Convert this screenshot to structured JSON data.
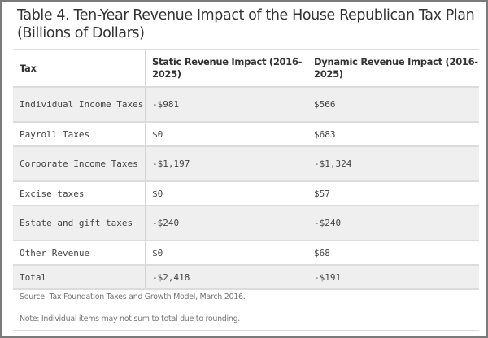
{
  "title": "Table 4. Ten-Year Revenue Impact of the House Republican Tax Plan (Billions of Dollars)",
  "table": {
    "headers": [
      "Tax",
      "Static Revenue Impact (2016-2025)",
      "Dynamic Revenue Impact (2016-2025)"
    ],
    "rows": [
      [
        "Individual Income Taxes",
        "-$981",
        "$566"
      ],
      [
        "Payroll Taxes",
        "$0",
        "$683"
      ],
      [
        "Corporate Income Taxes",
        "-$1,197",
        "-$1,324"
      ],
      [
        "Excise taxes",
        "$0",
        "$57"
      ],
      [
        "Estate and gift taxes",
        "-$240",
        "-$240"
      ],
      [
        "Other Revenue",
        "$0",
        "$68"
      ],
      [
        "Total",
        "-$2,418",
        "-$191"
      ]
    ]
  },
  "notes": {
    "source": "Source: Tax Foundation Taxes and Growth Model, March 2016.",
    "note": "Note: Individual items may not sum to total due to rounding."
  }
}
